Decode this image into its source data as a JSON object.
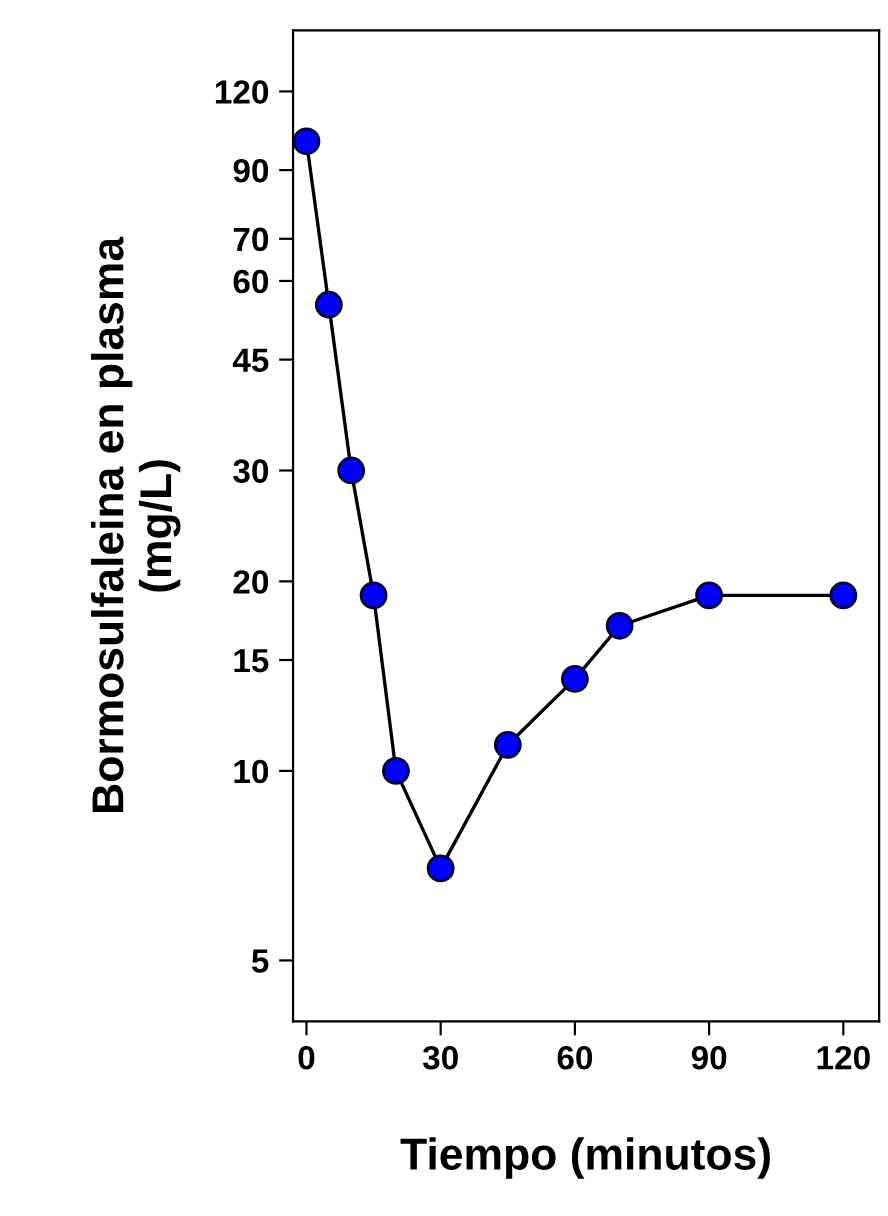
{
  "chart_data": {
    "type": "line",
    "xlabel": "Tiempo (minutos)",
    "ylabel": "Bormosulfaleina en plasma\n(mg/L)",
    "x": [
      0,
      5,
      10,
      15,
      20,
      30,
      45,
      60,
      70,
      90,
      120
    ],
    "series": [
      {
        "color": "#0000ff",
        "values": [
          100,
          55,
          30,
          19,
          10,
          7,
          11,
          14,
          17,
          19,
          19
        ]
      }
    ],
    "log": "y",
    "xlim": [
      -3,
      128
    ],
    "xticks": [
      0,
      30,
      60,
      90,
      120
    ],
    "ylim": [
      4,
      150
    ],
    "yticks": [
      5,
      10,
      15,
      20,
      30,
      45,
      60,
      70,
      90,
      120
    ],
    "marker": "circle",
    "line_style": "solid",
    "grid": false,
    "legend": false
  }
}
